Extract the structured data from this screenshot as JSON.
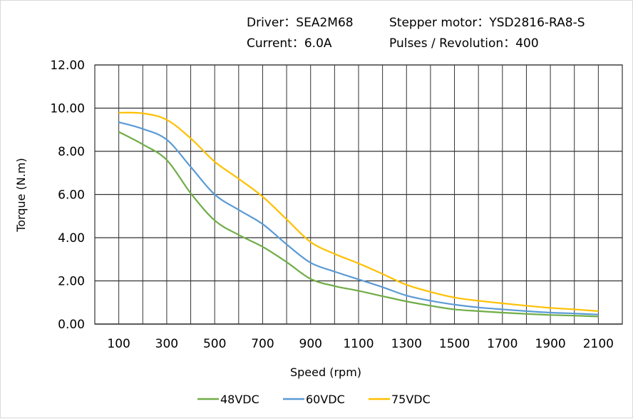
{
  "header": {
    "driver": "Driver：SEA2M68",
    "motor": "Stepper motor：YSD2816-RA8-S",
    "current": "Current：6.0A",
    "pulses": "Pulses / Revolution：400"
  },
  "chart_data": {
    "type": "line",
    "xlabel": "Speed  (rpm)",
    "ylabel": "Torque (N.m)",
    "xlim": [
      0,
      2200
    ],
    "ylim": [
      0,
      12
    ],
    "yticks": [
      "0.00",
      "2.00",
      "4.00",
      "6.00",
      "8.00",
      "10.00",
      "12.00"
    ],
    "xticks": [
      "100",
      "300",
      "500",
      "700",
      "900",
      "1100",
      "1300",
      "1500",
      "1700",
      "1900",
      "2100"
    ],
    "grid": true,
    "legend_position": "bottom",
    "x": [
      100,
      200,
      300,
      400,
      500,
      600,
      700,
      800,
      900,
      1000,
      1100,
      1200,
      1300,
      1400,
      1500,
      1600,
      1700,
      1800,
      1900,
      2000,
      2100
    ],
    "series": [
      {
        "name": "48VDC",
        "color": "#70AD47",
        "values": [
          8.9,
          8.32,
          7.6,
          6.06,
          4.8,
          4.13,
          3.58,
          2.87,
          2.09,
          1.76,
          1.54,
          1.29,
          1.05,
          0.85,
          0.68,
          0.6,
          0.53,
          0.47,
          0.42,
          0.39,
          0.35
        ]
      },
      {
        "name": "60VDC",
        "color": "#5B9BD5",
        "values": [
          9.35,
          9.04,
          8.54,
          7.28,
          6.0,
          5.29,
          4.63,
          3.69,
          2.84,
          2.43,
          2.07,
          1.71,
          1.32,
          1.08,
          0.9,
          0.77,
          0.68,
          0.6,
          0.53,
          0.49,
          0.44
        ]
      },
      {
        "name": "75VDC",
        "color": "#FFC000",
        "values": [
          9.79,
          9.76,
          9.46,
          8.6,
          7.52,
          6.73,
          5.9,
          4.85,
          3.8,
          3.25,
          2.81,
          2.32,
          1.82,
          1.49,
          1.23,
          1.08,
          0.96,
          0.85,
          0.75,
          0.68,
          0.6
        ]
      }
    ]
  }
}
